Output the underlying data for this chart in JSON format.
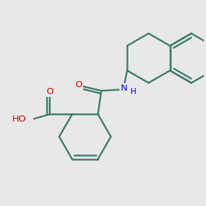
{
  "background_color": "#e8e8e8",
  "bond_color": "#3d7d6e",
  "bond_width": 1.8,
  "atom_colors": {
    "O": "#cc0000",
    "N": "#0000cc",
    "C": "#3d7d6e",
    "H": "#888888"
  },
  "font_size": 9.5
}
